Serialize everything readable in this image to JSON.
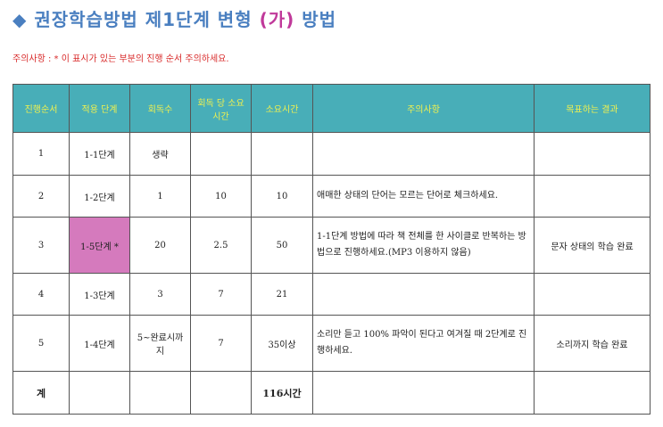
{
  "title": {
    "icon": "diamond-icon",
    "main": "권장학습방법 제1단계 변형",
    "accent": "(가)",
    "tail": "방법",
    "color": "#4a7fc0",
    "accent_color": "#c0399a"
  },
  "note": "주의사항 : * 이 표시가 있는 부분의 진행 순서 주의하세요.",
  "table": {
    "header_bg": "#48aeb8",
    "header_fg": "#eef050",
    "highlight": "#d57abd",
    "headers": [
      "진행순서",
      "적용 단계",
      "회독수",
      "회독 당 소요시간",
      "소요시간",
      "주의사항",
      "목표하는 결과"
    ],
    "rows": [
      [
        "1",
        "1-1단계",
        "생략",
        "",
        "",
        "",
        ""
      ],
      [
        "2",
        "1-2단계",
        "1",
        "10",
        "10",
        "애매한 상태의 단어는 모르는 단어로 체크하세요.",
        ""
      ],
      [
        "3",
        "1-5단계 *",
        "20",
        "2.5",
        "50",
        "1-1단계 방법에 따라 책 전체를 한 사이클로 반복하는 방법으로 진행하세요.(MP3 이용하지 않음)",
        "문자 상태의 학습 완료"
      ],
      [
        "4",
        "1-3단계",
        "3",
        "7",
        "21",
        "",
        ""
      ],
      [
        "5",
        "1-4단계",
        "5~완료시까지",
        "7",
        "35이상",
        "소리만 듣고 100% 파악이 된다고 여겨질 때 2단계로 진행하세요.",
        "소리까지 학습 완료"
      ],
      [
        "계",
        "",
        "",
        "",
        "116시간",
        "",
        ""
      ]
    ]
  }
}
